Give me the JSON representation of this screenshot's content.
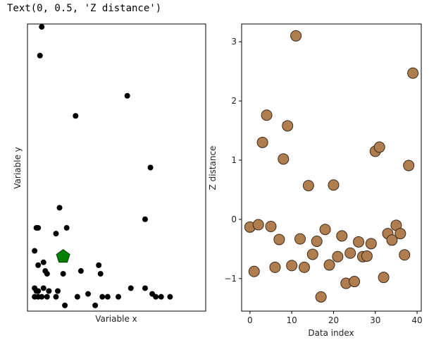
{
  "output_text": "Text(0, 0.5, 'Z distance')",
  "chart_data": [
    {
      "type": "scatter",
      "xlabel": "Variable x",
      "ylabel": "Variable y",
      "ticks": "none",
      "marker_color": "#000000",
      "highlight": {
        "x": 0.2,
        "y": 0.19,
        "shape": "pentagon",
        "color": "#008000"
      },
      "xlim": [
        0,
        1
      ],
      "ylim": [
        0,
        1
      ],
      "x": [
        0.08,
        0.07,
        0.27,
        0.56,
        0.69,
        0.18,
        0.22,
        0.05,
        0.06,
        0.16,
        0.66,
        0.04,
        0.09,
        0.06,
        0.1,
        0.11,
        0.2,
        0.4,
        0.41,
        0.3,
        0.04,
        0.09,
        0.05,
        0.06,
        0.12,
        0.17,
        0.34,
        0.38,
        0.21,
        0.58,
        0.66,
        0.7,
        0.72,
        0.75,
        0.8,
        0.04,
        0.06,
        0.08,
        0.11,
        0.16,
        0.28,
        0.42,
        0.45,
        0.51
      ],
      "y": [
        0.99,
        0.89,
        0.68,
        0.75,
        0.5,
        0.36,
        0.29,
        0.29,
        0.29,
        0.27,
        0.32,
        0.21,
        0.17,
        0.16,
        0.14,
        0.13,
        0.13,
        0.16,
        0.13,
        0.14,
        0.08,
        0.08,
        0.07,
        0.07,
        0.07,
        0.07,
        0.06,
        0.02,
        0.02,
        0.08,
        0.08,
        0.06,
        0.05,
        0.05,
        0.05,
        0.05,
        0.05,
        0.05,
        0.05,
        0.05,
        0.05,
        0.05,
        0.05,
        0.05
      ]
    },
    {
      "type": "scatter",
      "xlabel": "Data index",
      "ylabel": "Z distance",
      "marker_face": "#b07d4f",
      "marker_edge": "#3a2a1a",
      "xlim": [
        -2,
        41
      ],
      "ylim": [
        -1.55,
        3.3
      ],
      "xticks": [
        0,
        10,
        20,
        30,
        40
      ],
      "yticks": [
        -1,
        0,
        1,
        2,
        3
      ],
      "x": [
        0,
        1,
        2,
        3,
        4,
        5,
        6,
        7,
        8,
        9,
        10,
        11,
        12,
        13,
        14,
        15,
        16,
        17,
        18,
        19,
        20,
        21,
        22,
        23,
        24,
        25,
        26,
        27,
        28,
        29,
        30,
        31,
        32,
        33,
        34,
        35,
        36,
        37,
        38,
        39
      ],
      "y": [
        -0.13,
        -0.88,
        -0.09,
        1.3,
        1.76,
        -0.12,
        -0.81,
        -0.34,
        1.02,
        1.58,
        -0.78,
        3.1,
        -0.33,
        -0.81,
        0.57,
        -0.59,
        -0.37,
        -1.31,
        -0.17,
        -0.77,
        0.58,
        -0.63,
        -0.28,
        -1.08,
        -0.57,
        -1.05,
        -0.38,
        -0.63,
        -0.62,
        -0.41,
        1.15,
        1.22,
        -0.98,
        -0.24,
        -0.35,
        -0.1,
        -0.24,
        -0.6,
        0.91,
        2.47
      ]
    }
  ]
}
